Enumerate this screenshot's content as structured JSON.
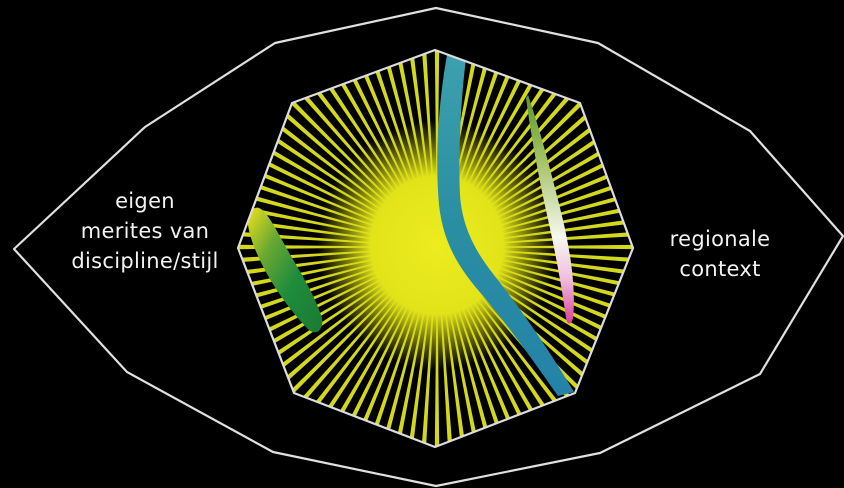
{
  "labels": {
    "left": [
      "eigen",
      "merites van",
      "discipline/stijl"
    ],
    "right": [
      "regionale",
      "context"
    ]
  },
  "colors": {
    "background": "#000000",
    "outline": "#e8e8e8",
    "center_fill": "#e6e61a",
    "rays": "#d4d81c",
    "blue_band": "#2a8fa3",
    "green_blob": "#1f8f3a",
    "light_strip": "#e8f0d0",
    "pink_tip": "#e060b0"
  }
}
